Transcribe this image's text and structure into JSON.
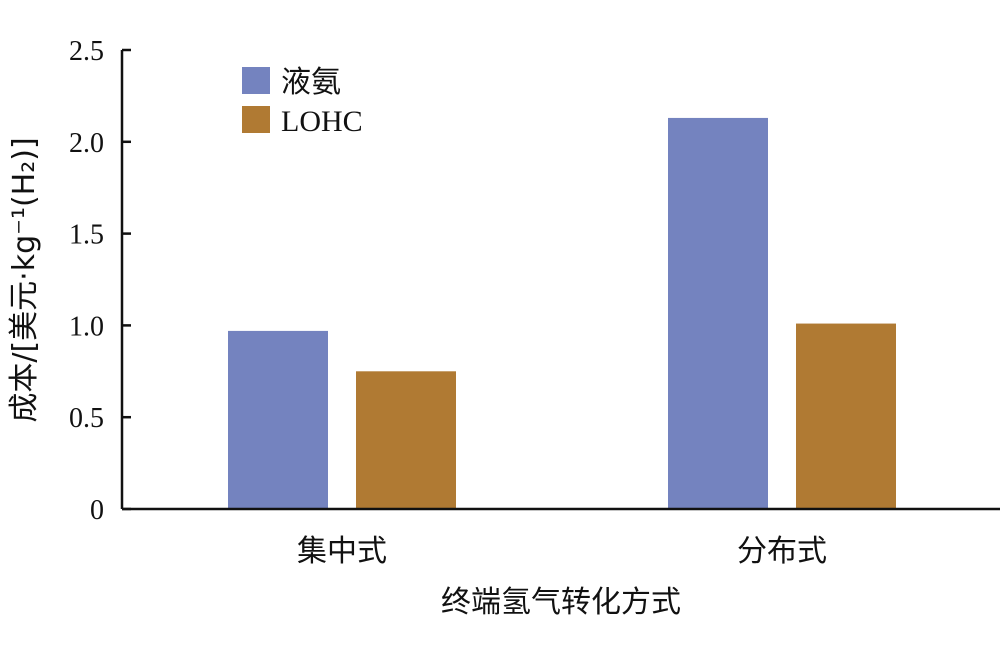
{
  "chart_data": {
    "type": "bar",
    "categories": [
      "集中式",
      "分布式"
    ],
    "series": [
      {
        "name": "液氨",
        "color": "#7483bf",
        "values": [
          0.97,
          2.13
        ]
      },
      {
        "name": "LOHC",
        "color": "#b07a33",
        "values": [
          0.75,
          1.01
        ]
      }
    ],
    "xlabel": "终端氢气转化方式",
    "ylabel": "成本/[美元·kg⁻¹(H₂)]",
    "ylim": [
      0,
      2.5
    ],
    "yticks": [
      0,
      0.5,
      1.0,
      1.5,
      2.0,
      2.5
    ],
    "ytick_labels": [
      "0",
      "0.5",
      "1.0",
      "1.5",
      "2.0",
      "2.5"
    ],
    "grid": false,
    "legend_position": "top-left"
  }
}
